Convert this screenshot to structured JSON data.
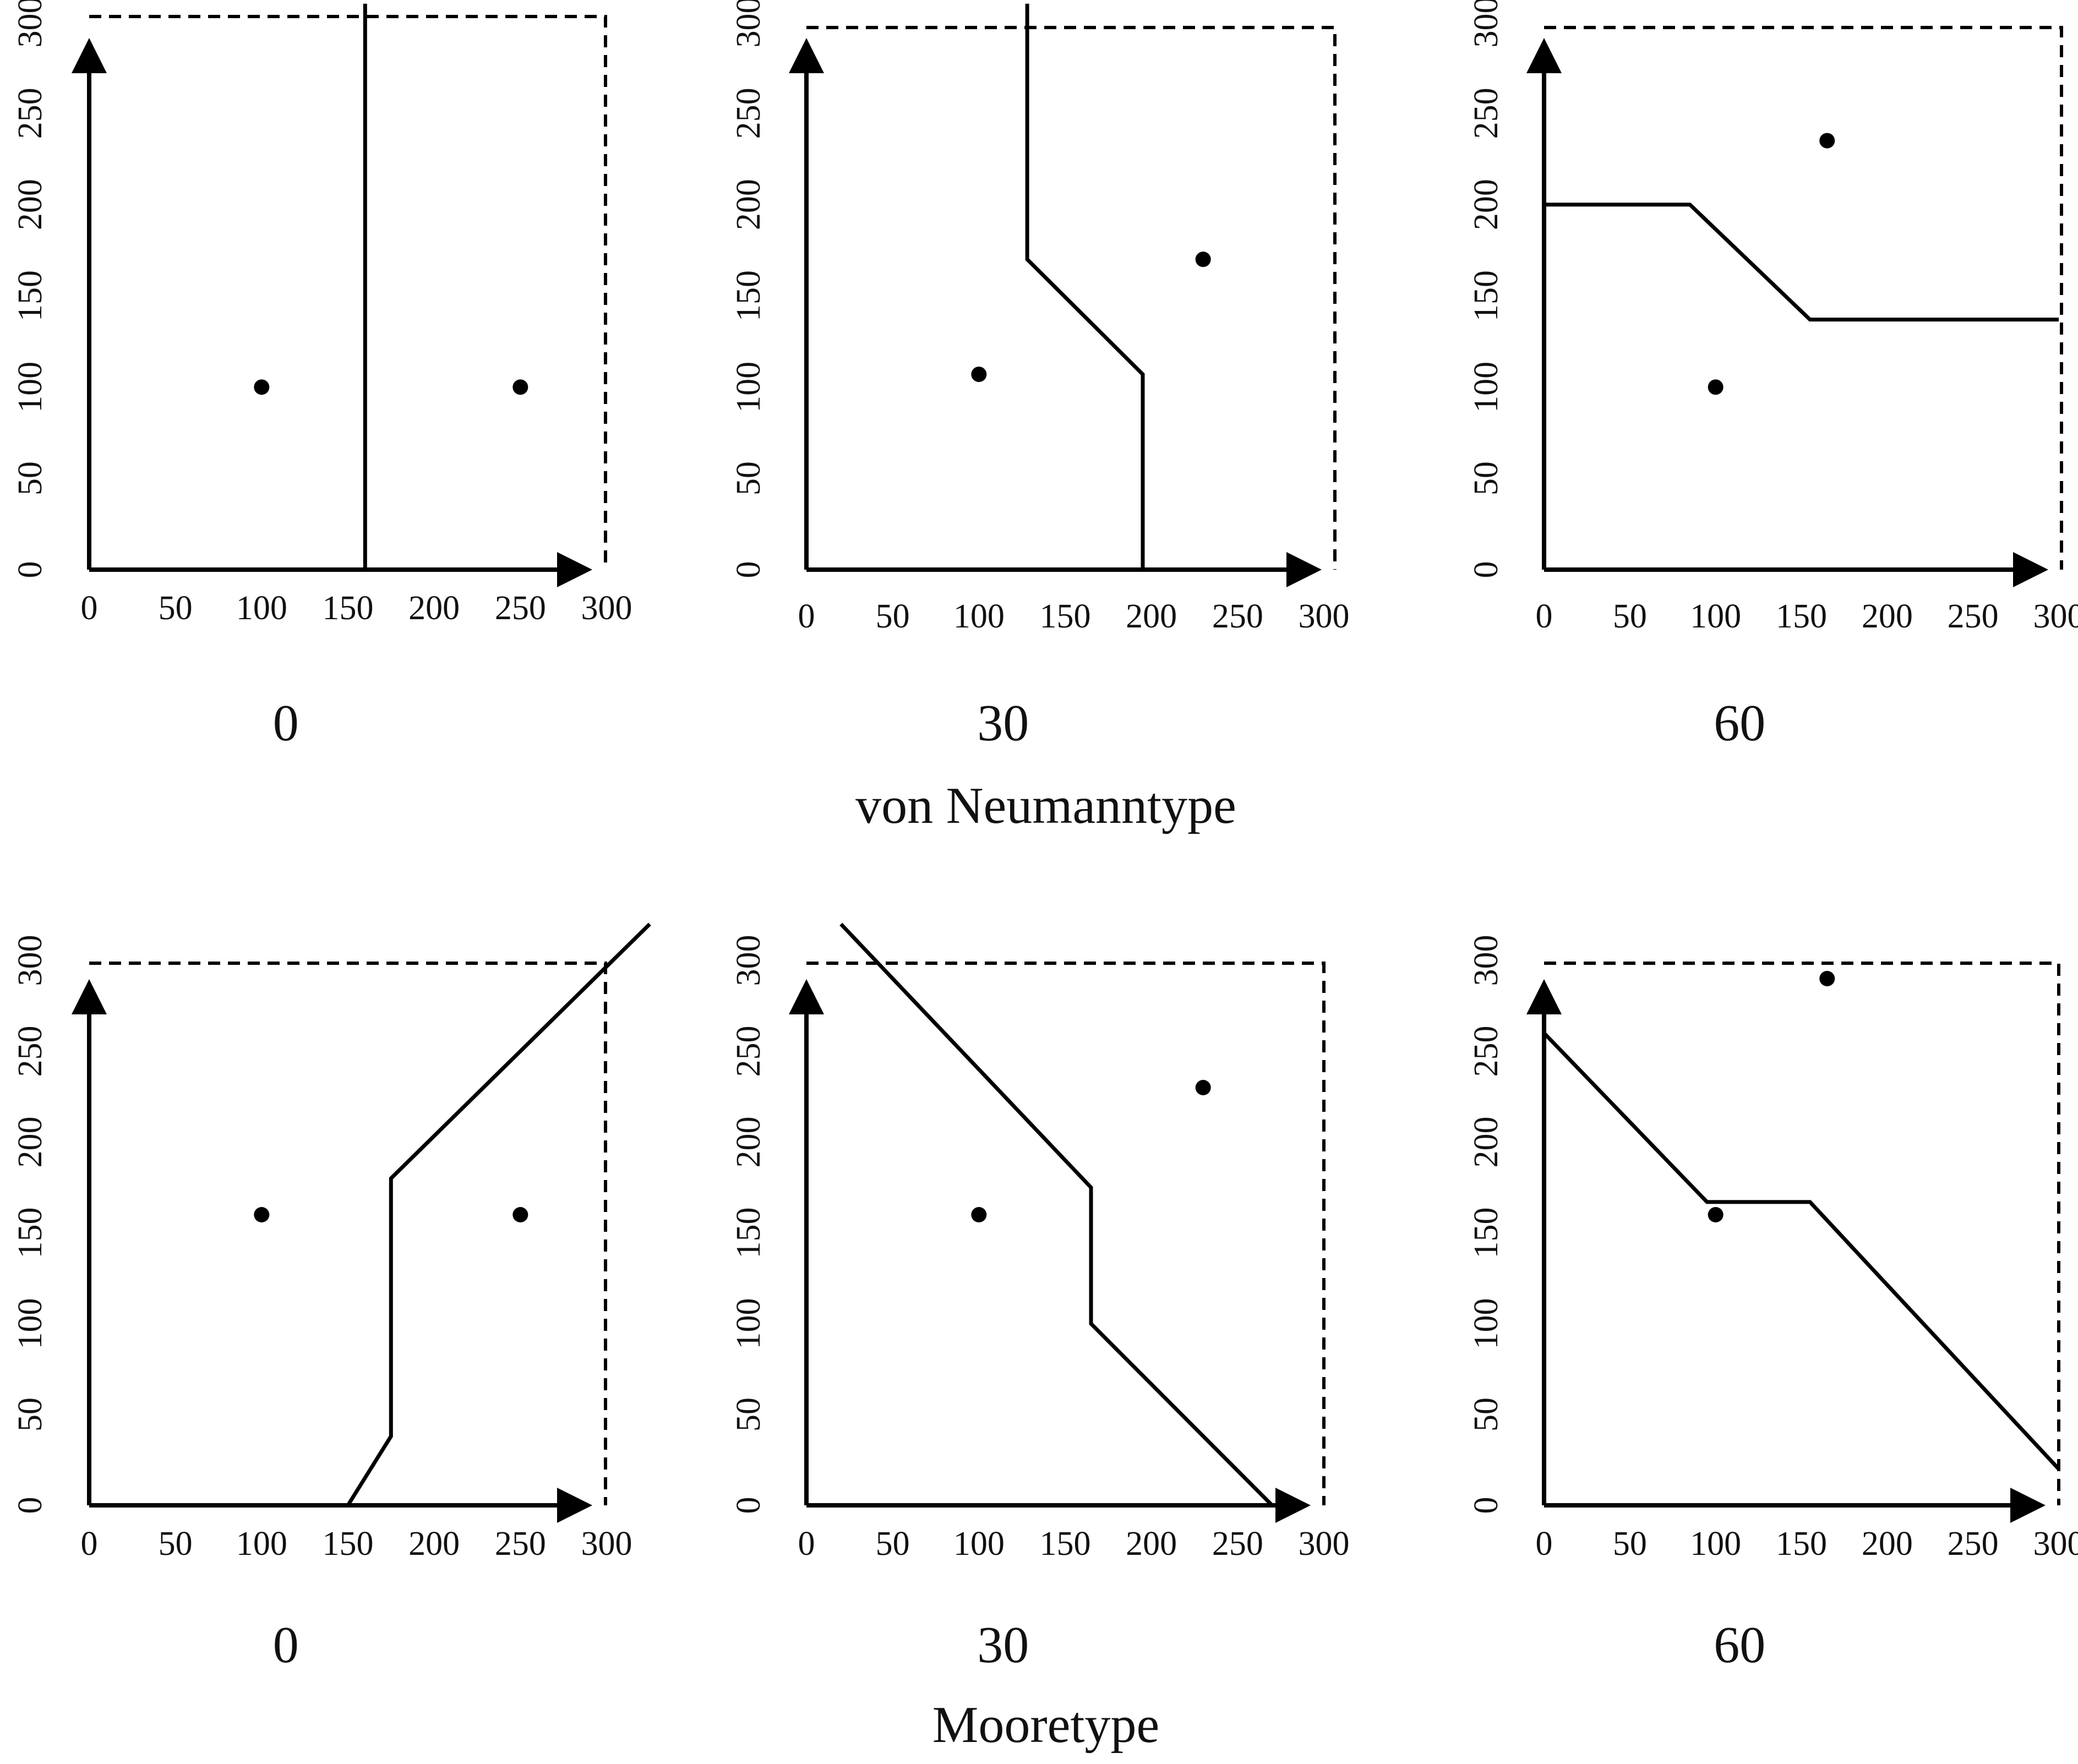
{
  "groups": [
    {
      "title": "von Neumanntype"
    },
    {
      "title": "Mooretype"
    }
  ],
  "panels": [
    {
      "caption": "0",
      "points": [
        [
          100,
          100
        ],
        [
          250,
          100
        ]
      ],
      "boundary": [
        [
          160,
          0
        ],
        [
          160,
          310
        ]
      ]
    },
    {
      "caption": "30",
      "points": [
        [
          100,
          107
        ],
        [
          230,
          170
        ]
      ],
      "boundary": [
        [
          195,
          0
        ],
        [
          195,
          107
        ],
        [
          128,
          170
        ],
        [
          128,
          310
        ]
      ]
    },
    {
      "caption": "60",
      "points": [
        [
          100,
          100
        ],
        [
          165,
          235
        ]
      ],
      "boundary": [
        [
          0,
          200
        ],
        [
          85,
          200
        ],
        [
          155,
          137
        ],
        [
          300,
          137
        ]
      ]
    },
    {
      "caption": "0",
      "points": [
        [
          100,
          160
        ],
        [
          250,
          160
        ]
      ],
      "boundary": [
        [
          150,
          0
        ],
        [
          175,
          38
        ],
        [
          175,
          180
        ],
        [
          325,
          320
        ]
      ]
    },
    {
      "caption": "30",
      "points": [
        [
          100,
          160
        ],
        [
          230,
          230
        ]
      ],
      "boundary": [
        [
          20,
          320
        ],
        [
          165,
          175
        ],
        [
          165,
          100
        ],
        [
          270,
          0
        ]
      ]
    },
    {
      "caption": "60",
      "points": [
        [
          100,
          160
        ],
        [
          165,
          290
        ]
      ],
      "boundary": [
        [
          0,
          260
        ],
        [
          95,
          167
        ],
        [
          155,
          167
        ],
        [
          300,
          20
        ]
      ]
    }
  ],
  "axis": {
    "x_ticks": [
      "0",
      "50",
      "100",
      "150",
      "200",
      "250",
      "300"
    ],
    "y_ticks": [
      "0",
      "50",
      "100",
      "150",
      "200",
      "250",
      "300"
    ]
  }
}
